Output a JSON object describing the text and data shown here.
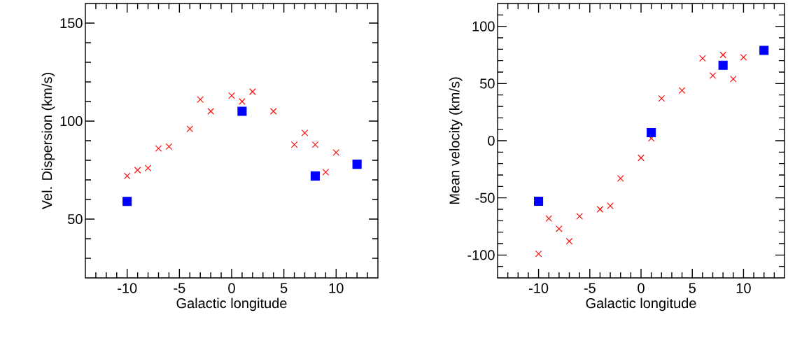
{
  "chart_data": [
    {
      "type": "scatter",
      "xlabel": "Galactic longitude",
      "ylabel": "Vel. Dispersion (km/s)",
      "xlim": [
        -14,
        14
      ],
      "ylim": [
        20,
        160
      ],
      "xticks": [
        -10,
        -5,
        0,
        5,
        10
      ],
      "yticks": [
        50,
        100,
        150
      ],
      "grid": false,
      "series": [
        {
          "color": "#ff0000",
          "marker": "cross",
          "x": [
            -10,
            -9,
            -8,
            -7,
            -6,
            -4,
            -3,
            -2,
            0,
            1,
            2,
            4,
            6,
            7,
            8,
            9,
            10
          ],
          "values": [
            72,
            75,
            76,
            86,
            87,
            96,
            111,
            105,
            113,
            110,
            115,
            105,
            88,
            94,
            88,
            74,
            84
          ]
        },
        {
          "color": "#0000ff",
          "marker": "square",
          "x": [
            -10,
            1,
            8,
            12
          ],
          "values": [
            59,
            105,
            72,
            78
          ]
        }
      ]
    },
    {
      "type": "scatter",
      "xlabel": "Galactic longitude",
      "ylabel": "Mean velocity (km/s)",
      "xlim": [
        -14,
        14
      ],
      "ylim": [
        -120,
        120
      ],
      "xticks": [
        -10,
        -5,
        0,
        5,
        10
      ],
      "yticks": [
        -100,
        -50,
        0,
        50,
        100
      ],
      "grid": false,
      "series": [
        {
          "color": "#ff0000",
          "marker": "cross",
          "x": [
            -10,
            -9,
            -8,
            -7,
            -6,
            -4,
            -3,
            -2,
            0,
            1,
            2,
            4,
            6,
            7,
            8,
            9,
            10
          ],
          "values": [
            -99,
            -68,
            -77,
            -88,
            -66,
            -60,
            -57,
            -33,
            -15,
            2,
            37,
            44,
            72,
            57,
            75,
            54,
            73
          ]
        },
        {
          "color": "#0000ff",
          "marker": "square",
          "x": [
            -10,
            1,
            8,
            12
          ],
          "values": [
            -53,
            7,
            66,
            79
          ]
        }
      ]
    }
  ]
}
